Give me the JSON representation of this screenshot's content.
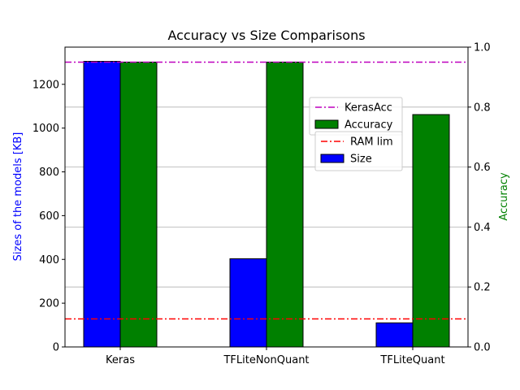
{
  "chart_data": {
    "type": "bar",
    "title": "Accuracy vs Size Comparisons",
    "categories": [
      "Keras",
      "TFLiteNonQuant",
      "TFLiteQuant"
    ],
    "left_axis": {
      "label": "Sizes of the models [KB]",
      "label_color": "#0000ff",
      "ylim": [
        0,
        1370
      ],
      "ticks": [
        0,
        200,
        400,
        600,
        800,
        1000,
        1200
      ]
    },
    "right_axis": {
      "label": "Accuracy",
      "label_color": "#008000",
      "ylim": [
        0.0,
        1.0
      ],
      "ticks": [
        "0.0",
        "0.2",
        "0.4",
        "0.6",
        "0.8",
        "1.0"
      ],
      "grid": true
    },
    "series": [
      {
        "name": "Size",
        "axis": "left",
        "color": "#0000ff",
        "values": [
          1305,
          403,
          110
        ]
      },
      {
        "name": "Accuracy",
        "axis": "right",
        "color": "#008000",
        "values": [
          0.95,
          0.95,
          0.775
        ]
      }
    ],
    "reference_lines": [
      {
        "name": "KerasAcc",
        "axis": "right",
        "value": 0.95,
        "color": "#bf00bf",
        "style": "dashdot"
      },
      {
        "name": "RAM lim",
        "axis": "left",
        "value": 128,
        "color": "#ff0000",
        "style": "dashdot"
      }
    ],
    "legends": [
      {
        "placement": "upper-right",
        "entries": [
          "KerasAcc",
          "Accuracy"
        ]
      },
      {
        "placement": "upper-right",
        "entries": [
          "RAM lim",
          "Size"
        ]
      }
    ]
  }
}
